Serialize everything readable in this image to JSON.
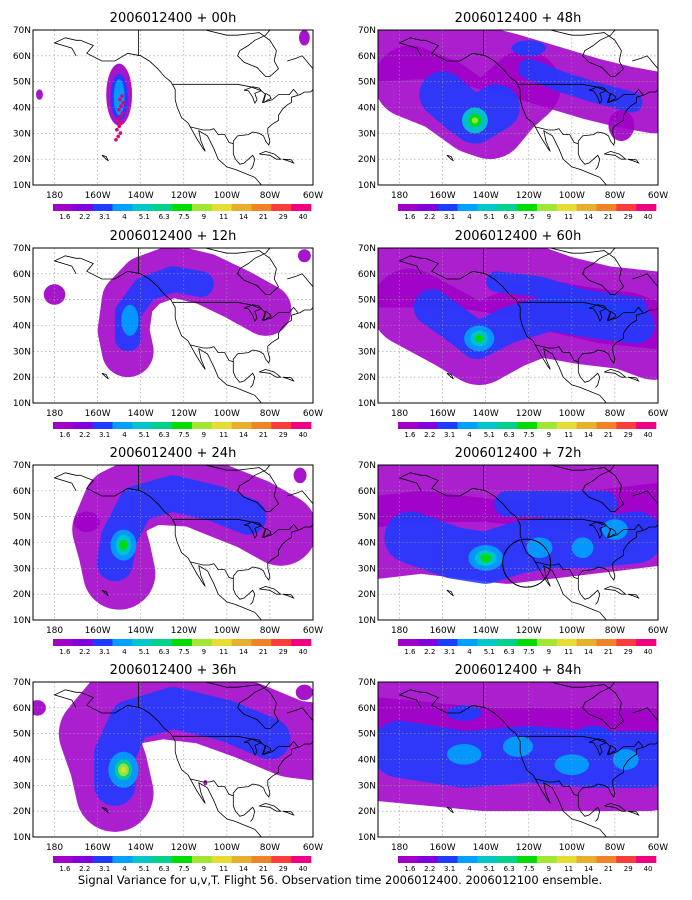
{
  "footer": "Signal Variance for u,v,T. Flight 56. Observation time 2006012400. 2006012100 ensemble.",
  "lat_labels": [
    "70N",
    "60N",
    "50N",
    "40N",
    "30N",
    "20N",
    "10N"
  ],
  "lon_labels": [
    "180",
    "160W",
    "140W",
    "120W",
    "100W",
    "80W",
    "60W"
  ],
  "colorbar": {
    "labels": [
      "1.6",
      "2.2",
      "3.1",
      "4",
      "5.1",
      "6.3",
      "7.5",
      "9",
      "11",
      "14",
      "21",
      "29",
      "40"
    ],
    "colors": [
      "#a000c8",
      "#8200dc",
      "#1e3cff",
      "#00a0ff",
      "#00c8c8",
      "#00d28c",
      "#00dc00",
      "#a0e632",
      "#e6dc32",
      "#e6af2d",
      "#f08228",
      "#fa3c3c",
      "#f00082"
    ]
  },
  "panels": [
    {
      "title": "2006012400 + 00h"
    },
    {
      "title": "2006012400 + 48h"
    },
    {
      "title": "2006012400 + 12h"
    },
    {
      "title": "2006012400 + 60h"
    },
    {
      "title": "2006012400 + 24h"
    },
    {
      "title": "2006012400 + 72h"
    },
    {
      "title": "2006012400 + 36h"
    },
    {
      "title": "2006012400 + 84h"
    }
  ]
}
